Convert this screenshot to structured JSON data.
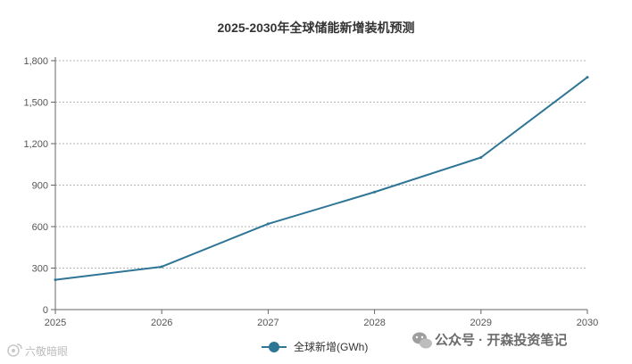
{
  "chart_data": {
    "type": "line",
    "title": "2025-2030年全球储能新增装机预测",
    "x": [
      "2025",
      "2026",
      "2027",
      "2028",
      "2029",
      "2030"
    ],
    "series": [
      {
        "name": "全球新增(GWh)",
        "values": [
          215,
          310,
          620,
          850,
          1100,
          1680
        ]
      }
    ],
    "y_ticks": [
      "0",
      "300",
      "600",
      "900",
      "1,200",
      "1,500",
      "1,800"
    ],
    "ylim": [
      0,
      1800
    ],
    "grid": true,
    "legend": "bottom",
    "line_color": "#2e7596"
  },
  "watermark": {
    "brand": "公众号 · 开森投资笔记",
    "left_mark": "六敬暗眼",
    "wechat_icon": "wechat-icon"
  }
}
